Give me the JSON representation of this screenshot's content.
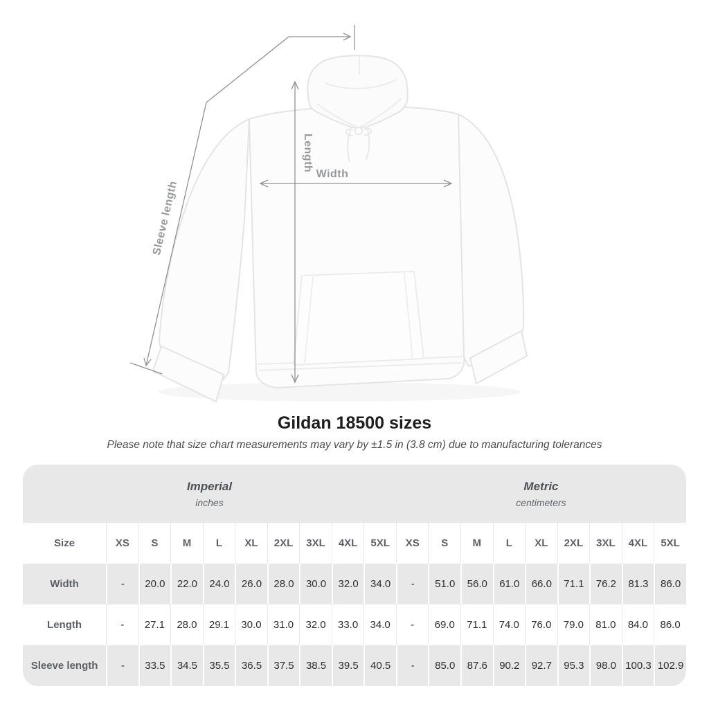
{
  "figure": {
    "width_label": "Width",
    "length_label": "Length",
    "sleeve_length_label": "Sleeve length",
    "annotation_line_color": "#8f9193",
    "annotation_label_color": "#97999c",
    "garment": "white pullover hoodie, front view"
  },
  "title": {
    "text": "Gildan 18500 sizes"
  },
  "subtitle": {
    "text": "Please note that size chart measurements may vary by ±1.5 in (3.8 cm) due to manufacturing tolerances"
  },
  "table": {
    "size_column_header": "Size",
    "group_headers": [
      {
        "label": "Imperial",
        "unit": "inches"
      },
      {
        "label": "Metric",
        "unit": "centimeters"
      }
    ],
    "sizes": [
      "XS",
      "S",
      "M",
      "L",
      "XL",
      "2XL",
      "3XL",
      "4XL",
      "5XL"
    ],
    "rows": [
      {
        "label": "Width",
        "imperial": [
          "-",
          "20.0",
          "22.0",
          "24.0",
          "26.0",
          "28.0",
          "30.0",
          "32.0",
          "34.0"
        ],
        "metric": [
          "-",
          "51.0",
          "56.0",
          "61.0",
          "66.0",
          "71.1",
          "76.2",
          "81.3",
          "86.0"
        ]
      },
      {
        "label": "Length",
        "imperial": [
          "-",
          "27.1",
          "28.0",
          "29.1",
          "30.0",
          "31.0",
          "32.0",
          "33.0",
          "34.0"
        ],
        "metric": [
          "-",
          "69.0",
          "71.1",
          "74.0",
          "76.0",
          "79.0",
          "81.0",
          "84.0",
          "86.0"
        ]
      },
      {
        "label": "Sleeve length",
        "imperial": [
          "-",
          "33.5",
          "34.5",
          "35.5",
          "36.5",
          "37.5",
          "38.5",
          "39.5",
          "40.5"
        ],
        "metric": [
          "-",
          "85.0",
          "87.6",
          "90.2",
          "92.7",
          "95.3",
          "98.0",
          "100.3",
          "102.9"
        ]
      }
    ],
    "colors": {
      "band_gray": "#e8e8e8",
      "header_text": "#5d6167",
      "value_text": "#2e2e2e"
    }
  },
  "chart_data": {
    "type": "table",
    "title": "Gildan 18500 sizes",
    "note": "Please note that size chart measurements may vary by ±1.5 in (3.8 cm) due to manufacturing tolerances",
    "column_groups": [
      "Imperial (inches)",
      "Metric (centimeters)"
    ],
    "sizes": [
      "XS",
      "S",
      "M",
      "L",
      "XL",
      "2XL",
      "3XL",
      "4XL",
      "5XL"
    ],
    "rows": [
      {
        "measurement": "Width",
        "imperial_inches": [
          "-",
          "20.0",
          "22.0",
          "24.0",
          "26.0",
          "28.0",
          "30.0",
          "32.0",
          "34.0"
        ],
        "metric_cm": [
          "-",
          "51.0",
          "56.0",
          "61.0",
          "66.0",
          "71.1",
          "76.2",
          "81.3",
          "86.0"
        ]
      },
      {
        "measurement": "Length",
        "imperial_inches": [
          "-",
          "27.1",
          "28.0",
          "29.1",
          "30.0",
          "31.0",
          "32.0",
          "33.0",
          "34.0"
        ],
        "metric_cm": [
          "-",
          "69.0",
          "71.1",
          "74.0",
          "76.0",
          "79.0",
          "81.0",
          "84.0",
          "86.0"
        ]
      },
      {
        "measurement": "Sleeve length",
        "imperial_inches": [
          "-",
          "33.5",
          "34.5",
          "35.5",
          "36.5",
          "37.5",
          "38.5",
          "39.5",
          "40.5"
        ],
        "metric_cm": [
          "-",
          "85.0",
          "87.6",
          "90.2",
          "92.7",
          "95.3",
          "98.0",
          "100.3",
          "102.9"
        ]
      }
    ]
  }
}
